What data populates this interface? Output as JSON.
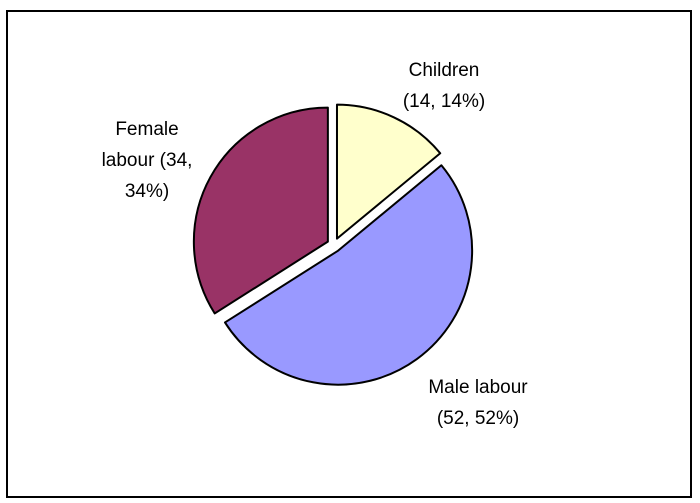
{
  "chart_data": {
    "type": "pie",
    "title": "",
    "slices": [
      {
        "label_lines": [
          "Children",
          "(14, 14%)"
        ],
        "value": 14,
        "percent": 14,
        "color": "#FFFFCC"
      },
      {
        "label_lines": [
          "Male labour",
          "(52, 52%)"
        ],
        "value": 52,
        "percent": 52,
        "color": "#9999FF"
      },
      {
        "label_lines": [
          "Female",
          "labour (34,",
          "34%)"
        ],
        "value": 34,
        "percent": 34,
        "color": "#993366"
      }
    ],
    "exploded": true,
    "legend": "none",
    "grid": false
  }
}
